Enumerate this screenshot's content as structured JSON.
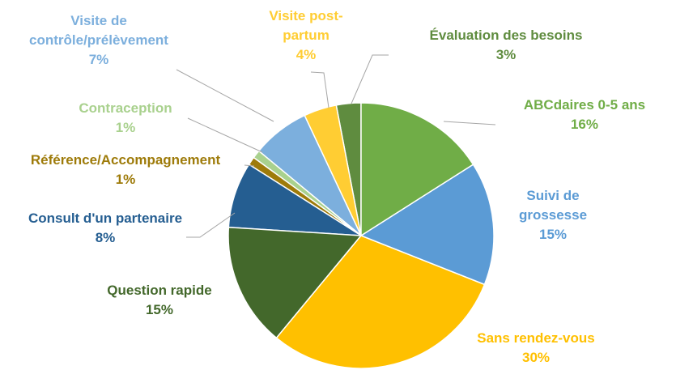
{
  "chart_data": {
    "type": "pie",
    "categories": [
      "ABCdaires 0-5 ans",
      "Suivi de grossesse",
      "Sans rendez-vous",
      "Question rapide",
      "Consult d'un partenaire",
      "Référence/Accompagnement",
      "Contraception",
      "Visite de contrôle/prélèvement",
      "Visite post-partum",
      "Évaluation des besoins"
    ],
    "values": [
      16,
      15,
      30,
      15,
      8,
      1,
      1,
      7,
      4,
      3
    ],
    "value_labels": [
      "16%",
      "15%",
      "30%",
      "15%",
      "8%",
      "1%",
      "1%",
      "7%",
      "4%",
      "3%"
    ],
    "colors": [
      "#70ad47",
      "#5b9bd5",
      "#ffc000",
      "#43682b",
      "#255e91",
      "#9e7b0a",
      "#a9d18e",
      "#7cafdd",
      "#ffcd33",
      "#5f8c3f"
    ]
  }
}
